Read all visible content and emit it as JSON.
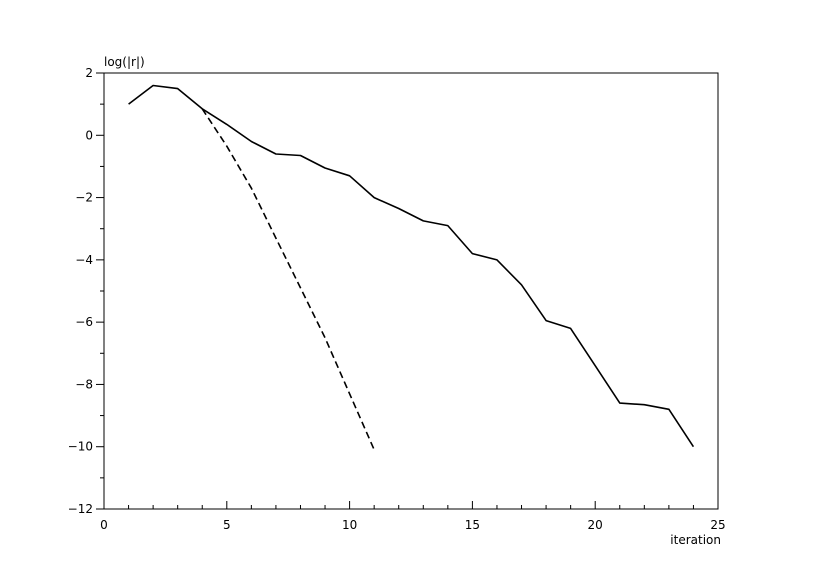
{
  "chart_data": {
    "type": "line",
    "title": "",
    "xlabel": "iteration",
    "ylabel": "log(|r|)",
    "xlim": [
      0,
      25
    ],
    "ylim": [
      -12,
      2
    ],
    "xticks": [
      0,
      5,
      10,
      15,
      20,
      25
    ],
    "yticks": [
      2,
      0,
      -2,
      -4,
      -6,
      -8,
      -10,
      -12
    ],
    "grid": false,
    "series": [
      {
        "style": "solid",
        "color": "#000000",
        "x": [
          1,
          2,
          3,
          4,
          5,
          6,
          7,
          8,
          9,
          10,
          11,
          12,
          13,
          14,
          15,
          16,
          17,
          18,
          19,
          20,
          21,
          22,
          23,
          24
        ],
        "y": [
          1.0,
          1.6,
          1.5,
          0.85,
          0.35,
          -0.2,
          -0.6,
          -0.65,
          -1.05,
          -1.3,
          -2.0,
          -2.35,
          -2.75,
          -2.9,
          -3.8,
          -4.0,
          -4.8,
          -5.95,
          -6.2,
          -7.4,
          -8.6,
          -8.65,
          -8.8,
          -10.0
        ]
      },
      {
        "style": "dashed",
        "color": "#000000",
        "x": [
          4,
          5,
          6,
          7,
          8,
          9,
          10,
          11
        ],
        "y": [
          0.85,
          -0.35,
          -1.7,
          -3.3,
          -4.9,
          -6.5,
          -8.3,
          -10.1
        ]
      }
    ]
  }
}
